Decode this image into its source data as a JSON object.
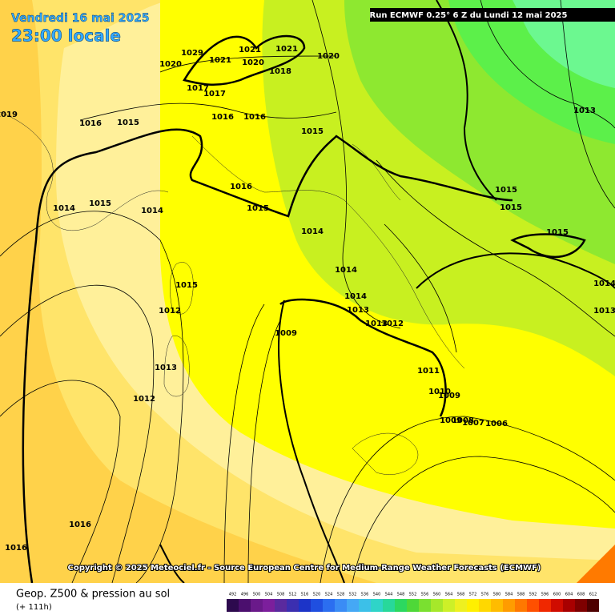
{
  "header": {
    "date": "Vendredi 16 mai 2025",
    "time": "23:00 locale",
    "run": "Run ECMWF 0.25° 6 Z du Lundi 12 mai 2025"
  },
  "isobar_labels": [
    "1029",
    "1021",
    "1021",
    "1021",
    "1020",
    "1020",
    "1018",
    "1020",
    "1017",
    "1017",
    "1019",
    "1016",
    "1015",
    "1016",
    "1016",
    "1015",
    "1013",
    "1014",
    "1015",
    "1014",
    "1016",
    "1015",
    "1014",
    "1015",
    "1015",
    "1015",
    "1014",
    "1015",
    "1012",
    "1014",
    "1013",
    "1009",
    "1013",
    "1012",
    "1014",
    "1013",
    "1013",
    "1011",
    "1010",
    "1009",
    "1012",
    "1009",
    "1008",
    "1007",
    "1006",
    "1016",
    "1016"
  ],
  "footer": {
    "copyright": "Copyright © 2025 Meteociel.fr - Source European Centre for Medium-Range Weather Forecasts (ECMWF)",
    "product": "Geop. Z500 & pression au sol",
    "step": "(+ 111h)"
  },
  "scale": {
    "labels": [
      "492",
      "496",
      "500",
      "504",
      "508",
      "512",
      "516",
      "520",
      "524",
      "528",
      "532",
      "536",
      "540",
      "544",
      "548",
      "552",
      "556",
      "560",
      "564",
      "568",
      "572",
      "576",
      "580",
      "584",
      "588",
      "592",
      "596",
      "600",
      "604",
      "608",
      "612"
    ],
    "colors": [
      "#2d0a4e",
      "#4b0f6e",
      "#6a1a8a",
      "#7c1f9c",
      "#5a2a9e",
      "#3b2fb0",
      "#1c34c8",
      "#1f4fe0",
      "#2b6ef0",
      "#3a8cf5",
      "#45a8f5",
      "#3cc0e8",
      "#2fd4c8",
      "#28d89a",
      "#2cd860",
      "#4ed838",
      "#7ae030",
      "#a6e82a",
      "#cdf028",
      "#eef020",
      "#fff000",
      "#ffd800",
      "#ffbc00",
      "#ff9c00",
      "#ff7800",
      "#ff5000",
      "#f02800",
      "#d00c00",
      "#a80000",
      "#7e0000",
      "#4e0000"
    ]
  }
}
